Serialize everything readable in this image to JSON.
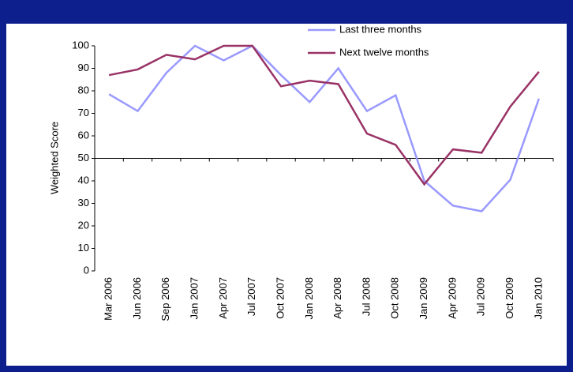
{
  "chart_data": {
    "type": "line",
    "y_label": "Weighted Score",
    "categories": [
      "Mar 2006",
      "Jun 2006",
      "Sep 2006",
      "Jan 2007",
      "Apr 2007",
      "Jul 2007",
      "Oct 2007",
      "Jan 2008",
      "Apr 2008",
      "Jul 2008",
      "Oct 2008",
      "Jan 2009",
      "Apr 2009",
      "Jul 2009",
      "Oct 2009",
      "Jan 2010"
    ],
    "series": [
      {
        "name": "Last three months",
        "color": "#9999ff",
        "values": [
          78.5,
          71,
          88,
          100,
          93.5,
          100,
          87,
          75,
          90,
          71,
          78,
          40,
          29,
          26.5,
          40.5,
          76.5
        ]
      },
      {
        "name": "Next twelve months",
        "color": "#993366",
        "values": [
          87,
          89.5,
          96,
          94,
          100,
          100,
          82,
          84.5,
          83,
          61,
          56,
          38.5,
          54,
          52.5,
          73,
          88.5
        ]
      }
    ],
    "ylim": [
      0,
      100
    ],
    "yticks": [
      0,
      10,
      20,
      30,
      40,
      50,
      60,
      70,
      80,
      90,
      100
    ],
    "x_axis_crosses": 50,
    "legend": "top-right"
  }
}
